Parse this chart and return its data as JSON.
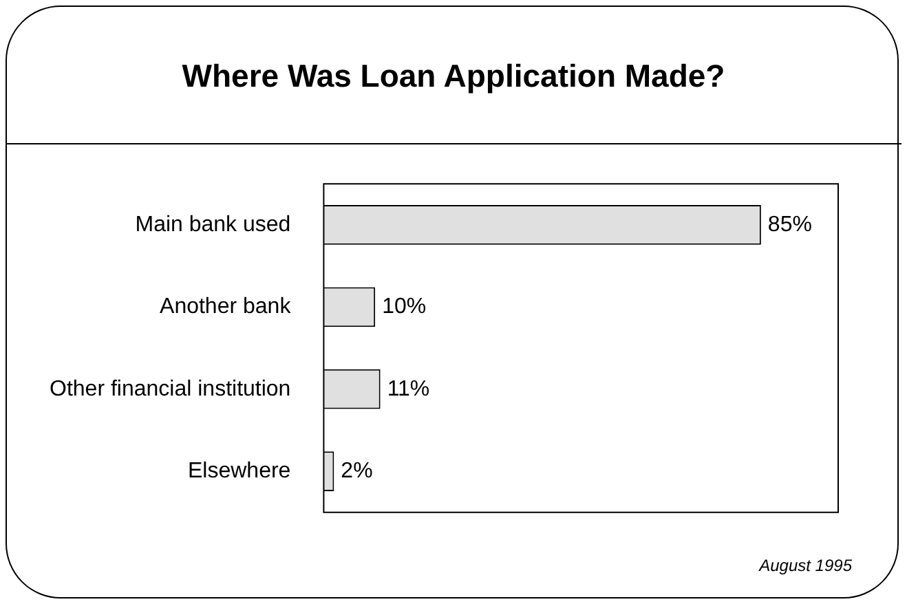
{
  "chart_data": {
    "type": "bar",
    "orientation": "horizontal",
    "title": "Where Was Loan Application Made?",
    "categories": [
      "Main bank used",
      "Another bank",
      "Other financial institution",
      "Elsewhere"
    ],
    "values": [
      85,
      10,
      11,
      2
    ],
    "value_labels": [
      "85%",
      "10%",
      "11%",
      "2%"
    ],
    "color": "#e0e0e0",
    "xlim": [
      0,
      100
    ],
    "tick_labels": "y",
    "grid": false,
    "legend": false,
    "annotations": [
      "August 1995"
    ]
  }
}
